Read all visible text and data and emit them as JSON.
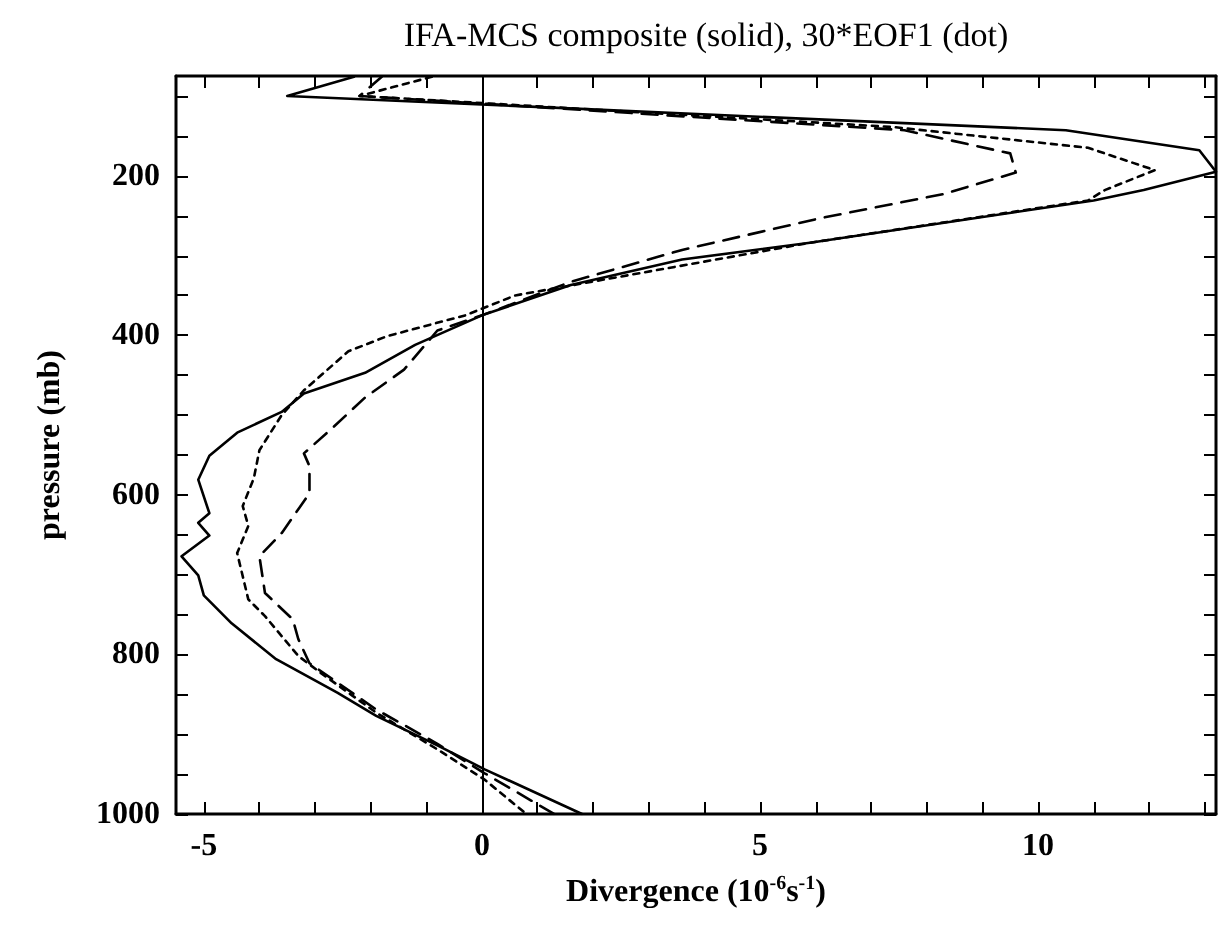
{
  "chart_data": {
    "type": "line",
    "title": "IFA-MCS composite (solid), 30*EOF1 (dot)",
    "xlabel": "Divergence (10$^{-6}$s$^{-1}$)",
    "ylabel": "pressure (mb)",
    "xlim": [
      -5.5,
      13.2
    ],
    "ylim": [
      1000,
      75
    ],
    "xticks": [
      -5,
      {
        "value": -4,
        "label": null
      },
      {
        "value": -3,
        "label": null
      },
      {
        "value": -2,
        "label": null
      },
      {
        "value": -1,
        "label": null
      },
      0,
      {
        "value": 1,
        "label": null
      },
      {
        "value": 2,
        "label": null
      },
      {
        "value": 3,
        "label": null
      },
      {
        "value": 4,
        "label": null
      },
      5,
      {
        "value": 6,
        "label": null
      },
      {
        "value": 7,
        "label": null
      },
      {
        "value": 8,
        "label": null
      },
      {
        "value": 9,
        "label": null
      },
      10,
      {
        "value": 11,
        "label": null
      },
      {
        "value": 12,
        "label": null
      },
      {
        "value": 13,
        "label": null
      }
    ],
    "yticks": [
      {
        "value": 100,
        "label": null
      },
      {
        "value": 150,
        "label": null
      },
      200,
      {
        "value": 250,
        "label": null
      },
      {
        "value": 300,
        "label": null
      },
      {
        "value": 350,
        "label": null
      },
      400,
      {
        "value": 450,
        "label": null
      },
      {
        "value": 500,
        "label": null
      },
      {
        "value": 550,
        "label": null
      },
      600,
      {
        "value": 650,
        "label": null
      },
      {
        "value": 700,
        "label": null
      },
      {
        "value": 750,
        "label": null
      },
      800,
      {
        "value": 850,
        "label": null
      },
      {
        "value": 900,
        "label": null
      },
      {
        "value": 950,
        "label": null
      },
      1000
    ],
    "grid": false,
    "marker": "none",
    "ref_lines": [
      {
        "axis": "x",
        "value": 0,
        "color": "#000000",
        "line_style": "solid"
      }
    ],
    "series": [
      {
        "color": "#000000",
        "line_style": "solid",
        "x": [
          -2.3,
          -3.5,
          10.5,
          12.9,
          13.2,
          11.9,
          11.0,
          5.9,
          3.6,
          1.6,
          0,
          -1.2,
          -2.1,
          -3.2,
          -3.6,
          -4.4,
          -4.9,
          -5.1,
          -4.9,
          -5.1,
          -4.9,
          -5.4,
          -5.1,
          -5.0,
          -4.5,
          -3.7,
          -2.6,
          -1.9,
          -0.8,
          0.05,
          1.8
        ],
        "values": [
          76,
          100,
          143,
          168,
          195,
          218,
          231,
          284,
          305,
          337,
          375,
          412,
          447,
          473,
          496,
          522,
          551,
          581,
          623,
          635,
          651,
          677,
          701,
          726,
          761,
          806,
          848,
          877,
          914,
          944,
          1000
        ]
      },
      {
        "color": "#000000",
        "line_style": "dotted",
        "x": [
          -0.9,
          -2.2,
          7.4,
          10.9,
          12.1,
          11.2,
          10.9,
          5.9,
          0.6,
          -0.3,
          -1.7,
          -2.4,
          -3.2,
          -3.6,
          -4.0,
          -4.1,
          -4.3,
          -4.2,
          -4.4,
          -4.2,
          -3.9,
          -3.3,
          -2.9,
          -1.9,
          -0.8,
          0.05,
          0.8
        ],
        "values": [
          76,
          100,
          139,
          165,
          193,
          218,
          231,
          284,
          350,
          375,
          401,
          420,
          469,
          500,
          544,
          579,
          614,
          639,
          673,
          731,
          752,
          802,
          823,
          873,
          919,
          957,
          1000
        ]
      },
      {
        "color": "#000000",
        "line_style": "dashed",
        "x": [
          -1.8,
          -2.2,
          7.6,
          9.5,
          9.6,
          8.3,
          6.1,
          3.6,
          1.6,
          0,
          -0.8,
          -1.4,
          -2.1,
          -2.7,
          -3.2,
          -3.1,
          -3.1,
          -3.6,
          -4.0,
          -3.9,
          -3.4,
          -3.3,
          -3.1,
          -1.9,
          -0.8,
          0.05,
          1.3
        ],
        "values": [
          76,
          100,
          143,
          172,
          196,
          223,
          253,
          293,
          333,
          375,
          394,
          443,
          478,
          517,
          548,
          564,
          598,
          648,
          677,
          723,
          756,
          781,
          811,
          869,
          912,
          949,
          1000
        ]
      }
    ]
  }
}
